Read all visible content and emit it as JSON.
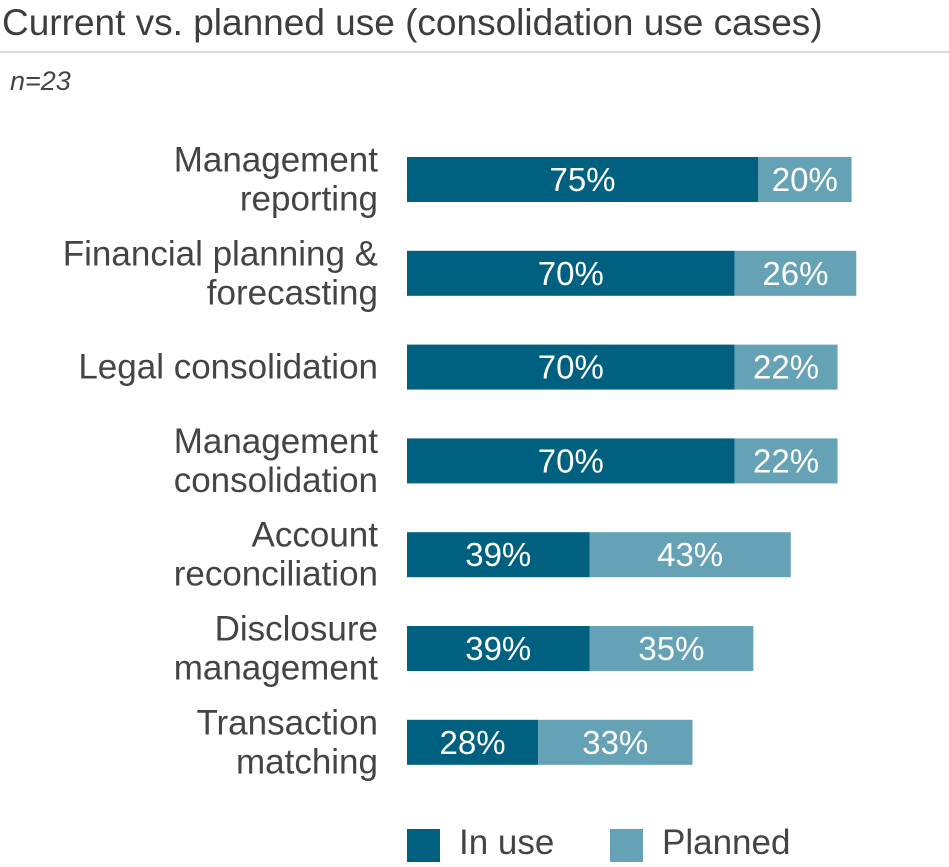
{
  "title": "Current vs. planned use (consolidation use cases)",
  "subtitle": "n=23",
  "colors": {
    "in_use": "#00607f",
    "planned": "#66a2b6",
    "label_text": "#444444",
    "bar_text": "#ffffff"
  },
  "legend": {
    "in_use_label": "In use",
    "planned_label": "Planned"
  },
  "chart_data": {
    "type": "bar",
    "orientation": "horizontal",
    "stacked": true,
    "categories": [
      [
        "Management",
        "reporting"
      ],
      [
        "Financial planning &",
        "forecasting"
      ],
      [
        "Legal consolidation"
      ],
      [
        "Management",
        "consolidation"
      ],
      [
        "Account",
        "reconciliation"
      ],
      [
        "Disclosure",
        "management"
      ],
      [
        "Transaction",
        "matching"
      ]
    ],
    "series": [
      {
        "name": "In use",
        "values": [
          75,
          70,
          70,
          70,
          39,
          39,
          28
        ],
        "labels": [
          "75%",
          "70%",
          "70%",
          "70%",
          "39%",
          "39%",
          "28%"
        ]
      },
      {
        "name": "Planned",
        "values": [
          20,
          26,
          22,
          22,
          43,
          35,
          33
        ],
        "labels": [
          "20%",
          "26%",
          "22%",
          "22%",
          "43%",
          "35%",
          "33%"
        ]
      }
    ],
    "unit": "%",
    "grid": false,
    "legend_position": "bottom"
  }
}
